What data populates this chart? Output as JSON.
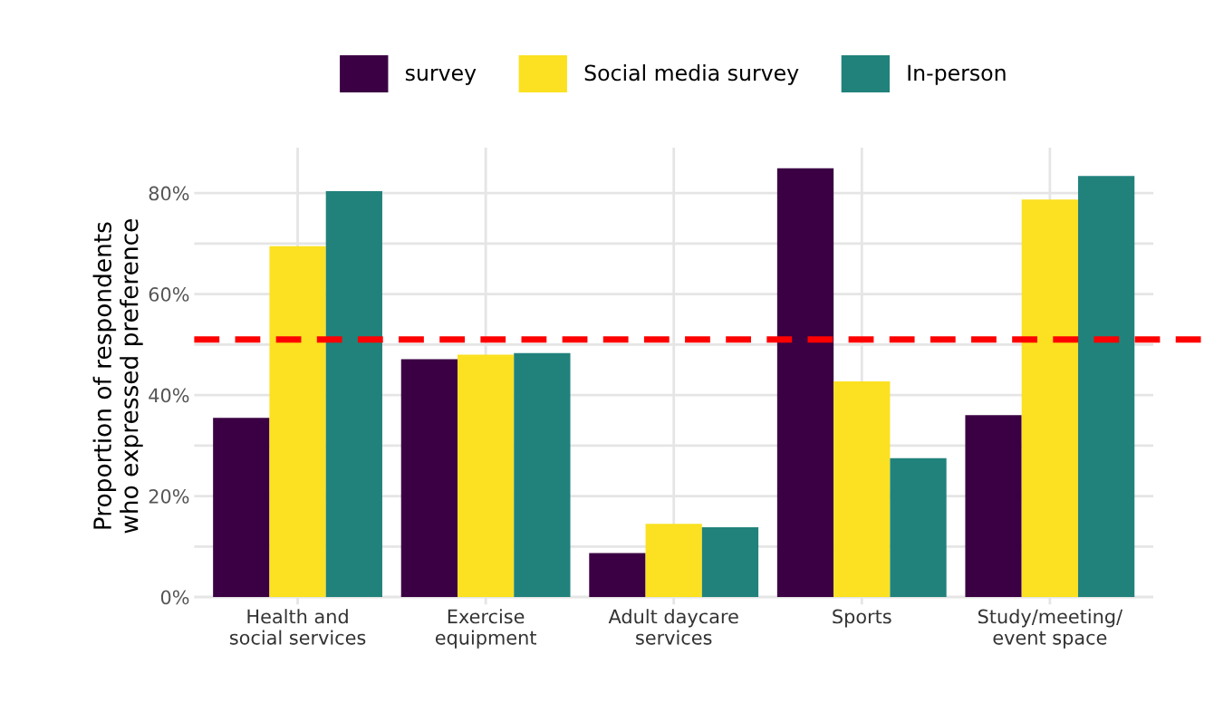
{
  "chart_data": {
    "type": "bar",
    "ylabel": "Proportion of respondents\nwho expressed preference",
    "categories": [
      "Health and\nsocial services",
      "Exercise\nequipment",
      "Adult daycare\nservices",
      "Sports",
      "Study/meeting/\nevent space"
    ],
    "series": [
      {
        "name": "survey",
        "color": "#3b0043",
        "values": [
          35.5,
          47.1,
          8.7,
          84.9,
          36.0
        ]
      },
      {
        "name": "Social media survey",
        "color": "#fbe121",
        "values": [
          69.5,
          48.0,
          14.5,
          42.7,
          78.7
        ]
      },
      {
        "name": "In-person",
        "color": "#21827c",
        "values": [
          80.4,
          48.3,
          13.8,
          27.5,
          83.4
        ]
      }
    ],
    "ylim": [
      -1.5,
      89
    ],
    "yticks": [
      {
        "value": 0,
        "label": "0%"
      },
      {
        "value": 10,
        "label": null
      },
      {
        "value": 20,
        "label": "20%"
      },
      {
        "value": 30,
        "label": null
      },
      {
        "value": 40,
        "label": "40%"
      },
      {
        "value": 50,
        "label": null
      },
      {
        "value": 60,
        "label": "60%"
      },
      {
        "value": 70,
        "label": null
      },
      {
        "value": 80,
        "label": "80%"
      }
    ],
    "ref_lines": [
      {
        "axis": "y",
        "value": 51,
        "color": "#ff0000",
        "line_style": "dashed"
      }
    ],
    "grid": true,
    "legend": "top"
  }
}
